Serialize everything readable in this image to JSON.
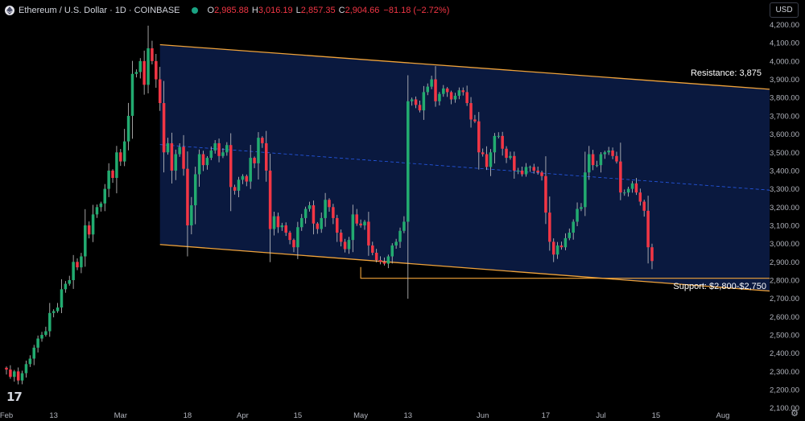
{
  "header": {
    "symbol_title": "Ethereum / U.S. Dollar · 1D · COINBASE",
    "open_label": "O",
    "open_value": "2,985.88",
    "high_label": "H",
    "high_value": "3,016.19",
    "low_label": "L",
    "low_value": "2,857.35",
    "close_label": "C",
    "close_value": "2,904.66",
    "change_value": "−81.18 (−2.72%)"
  },
  "currency_button": "USD",
  "logo_text": "17",
  "settings_icon": "gear-icon",
  "colors": {
    "up": "#22ab70",
    "down": "#f23645",
    "channel_fill": "#0b1a42",
    "channel_line": "#f0a33a",
    "midline": "#2962ff"
  },
  "chart_data": {
    "type": "candlestick",
    "x_ticks": [
      "Feb",
      "13",
      "Mar",
      "18",
      "Apr",
      "15",
      "May",
      "13",
      "Jun",
      "17",
      "Jul",
      "15",
      "Aug"
    ],
    "y_ticks": [
      "4,200.00",
      "4,100.00",
      "4,000.00",
      "3,900.00",
      "3,800.00",
      "3,700.00",
      "3,600.00",
      "3,500.00",
      "3,400.00",
      "3,300.00",
      "3,200.00",
      "3,100.00",
      "3,000.00",
      "2,900.00",
      "2,800.00",
      "2,700.00",
      "2,600.00",
      "2,500.00",
      "2,400.00",
      "2,300.00",
      "2,200.00",
      "2,100.00"
    ],
    "y_range": [
      2070,
      4240
    ],
    "annotations": {
      "resistance": "Resistance: 3,875",
      "support": "Support: $2,800-$2,750"
    },
    "channel": {
      "upper": [
        [
          "Mar 11",
          4090
        ],
        [
          "Aug 7",
          3855
        ]
      ],
      "lower": [
        [
          "Mar 11",
          2995
        ],
        [
          "Aug 7",
          2750
        ]
      ],
      "support_level": 2810,
      "support_start": "May 1"
    },
    "closes": [
      2310,
      2270,
      2300,
      2250,
      2290,
      2340,
      2370,
      2430,
      2480,
      2500,
      2520,
      2620,
      2630,
      2650,
      2750,
      2780,
      2800,
      2900,
      2870,
      2930,
      3100,
      3050,
      3160,
      3200,
      3220,
      3300,
      3400,
      3360,
      3500,
      3450,
      3560,
      3700,
      3930,
      3940,
      4000,
      3870,
      4070,
      4000,
      3900,
      3770,
      3500,
      3550,
      3400,
      3490,
      3530,
      3410,
      3100,
      3210,
      3380,
      3490,
      3430,
      3470,
      3510,
      3550,
      3480,
      3500,
      3540,
      3310,
      3290,
      3350,
      3370,
      3340,
      3470,
      3440,
      3580,
      3550,
      3400,
      3080,
      3150,
      3090,
      3100,
      3060,
      3020,
      2980,
      3090,
      3140,
      3190,
      3210,
      3110,
      3080,
      3140,
      3240,
      3200,
      3140,
      3060,
      3010,
      2970,
      3020,
      3160,
      3110,
      3100,
      3120,
      2990,
      2950,
      2910,
      2900,
      2890,
      2930,
      2990,
      3010,
      3070,
      3120,
      3780,
      3790,
      3760,
      3730,
      3830,
      3860,
      3900,
      3780,
      3820,
      3850,
      3830,
      3790,
      3810,
      3840,
      3830,
      3770,
      3680,
      3670,
      3500,
      3490,
      3420,
      3500,
      3590,
      3590,
      3520,
      3470,
      3480,
      3400,
      3400,
      3380,
      3420,
      3420,
      3400,
      3390,
      3370,
      3170,
      3010,
      2940,
      2990,
      2980,
      3030,
      3060,
      3120,
      3190,
      3200,
      3390,
      3490,
      3430,
      3430,
      3490,
      3500,
      3510,
      3480,
      3450,
      3280,
      3280,
      3300,
      3330,
      3280,
      3230,
      3180,
      2980,
      2904.66
    ]
  }
}
